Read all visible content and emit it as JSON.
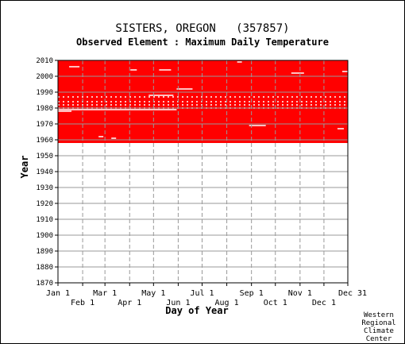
{
  "chart_data": {
    "type": "heatmap",
    "title": "SISTERS, OREGON   (357857)",
    "subtitle": "Observed Element : Maximum Daily Temperature",
    "xlabel": "Day of Year",
    "ylabel": "Year",
    "ylim": [
      1870,
      2010
    ],
    "xlim": [
      1,
      365
    ],
    "grid": true,
    "y_ticks": [
      1870,
      1880,
      1890,
      1900,
      1910,
      1920,
      1930,
      1940,
      1950,
      1960,
      1970,
      1980,
      1990,
      2000,
      2010
    ],
    "x_ticks_top": [
      {
        "label": "Jan 1",
        "day": 1
      },
      {
        "label": "Mar 1",
        "day": 60
      },
      {
        "label": "May 1",
        "day": 121
      },
      {
        "label": "Jul 1",
        "day": 182
      },
      {
        "label": "Sep 1",
        "day": 244
      },
      {
        "label": "Nov 1",
        "day": 305
      },
      {
        "label": "Dec 31",
        "day": 365
      }
    ],
    "x_ticks_bottom": [
      {
        "label": "Feb 1",
        "day": 32
      },
      {
        "label": "Apr 1",
        "day": 91
      },
      {
        "label": "Jun 1",
        "day": 152
      },
      {
        "label": "Aug 1",
        "day": 213
      },
      {
        "label": "Oct 1",
        "day": 274
      },
      {
        "label": "Dec 1",
        "day": 335
      }
    ],
    "coverage": {
      "color": "#ff0000",
      "year_start": 1958,
      "year_end": 2010
    },
    "gaps": [
      {
        "year": 2006,
        "day_start": 15,
        "day_end": 28
      },
      {
        "year": 2004,
        "day_start": 92,
        "day_end": 100
      },
      {
        "year": 2004,
        "day_start": 128,
        "day_end": 143
      },
      {
        "year": 1992,
        "day_start": 150,
        "day_end": 170
      },
      {
        "year": 1988,
        "day_start": 115,
        "day_end": 146
      },
      {
        "year": 1987,
        "day_start": 1,
        "day_end": 365
      },
      {
        "year": 1984,
        "day_start": 1,
        "day_end": 365
      },
      {
        "year": 1982,
        "day_start": 1,
        "day_end": 365
      },
      {
        "year": 1980,
        "day_start": 1,
        "day_end": 365
      },
      {
        "year": 1979,
        "day_start": 1,
        "day_end": 150
      },
      {
        "year": 1978,
        "day_start": 1,
        "day_end": 18
      },
      {
        "year": 1969,
        "day_start": 241,
        "day_end": 262
      },
      {
        "year": 2002,
        "day_start": 294,
        "day_end": 310
      },
      {
        "year": 2003,
        "day_start": 358,
        "day_end": 365
      },
      {
        "year": 1967,
        "day_start": 352,
        "day_end": 360
      },
      {
        "year": 2009,
        "day_start": 226,
        "day_end": 232
      },
      {
        "year": 1962,
        "day_start": 52,
        "day_end": 58
      },
      {
        "year": 1961,
        "day_start": 68,
        "day_end": 74
      }
    ]
  },
  "footer": {
    "credit_lines": [
      "Western",
      "Regional",
      "Climate",
      "Center"
    ]
  }
}
